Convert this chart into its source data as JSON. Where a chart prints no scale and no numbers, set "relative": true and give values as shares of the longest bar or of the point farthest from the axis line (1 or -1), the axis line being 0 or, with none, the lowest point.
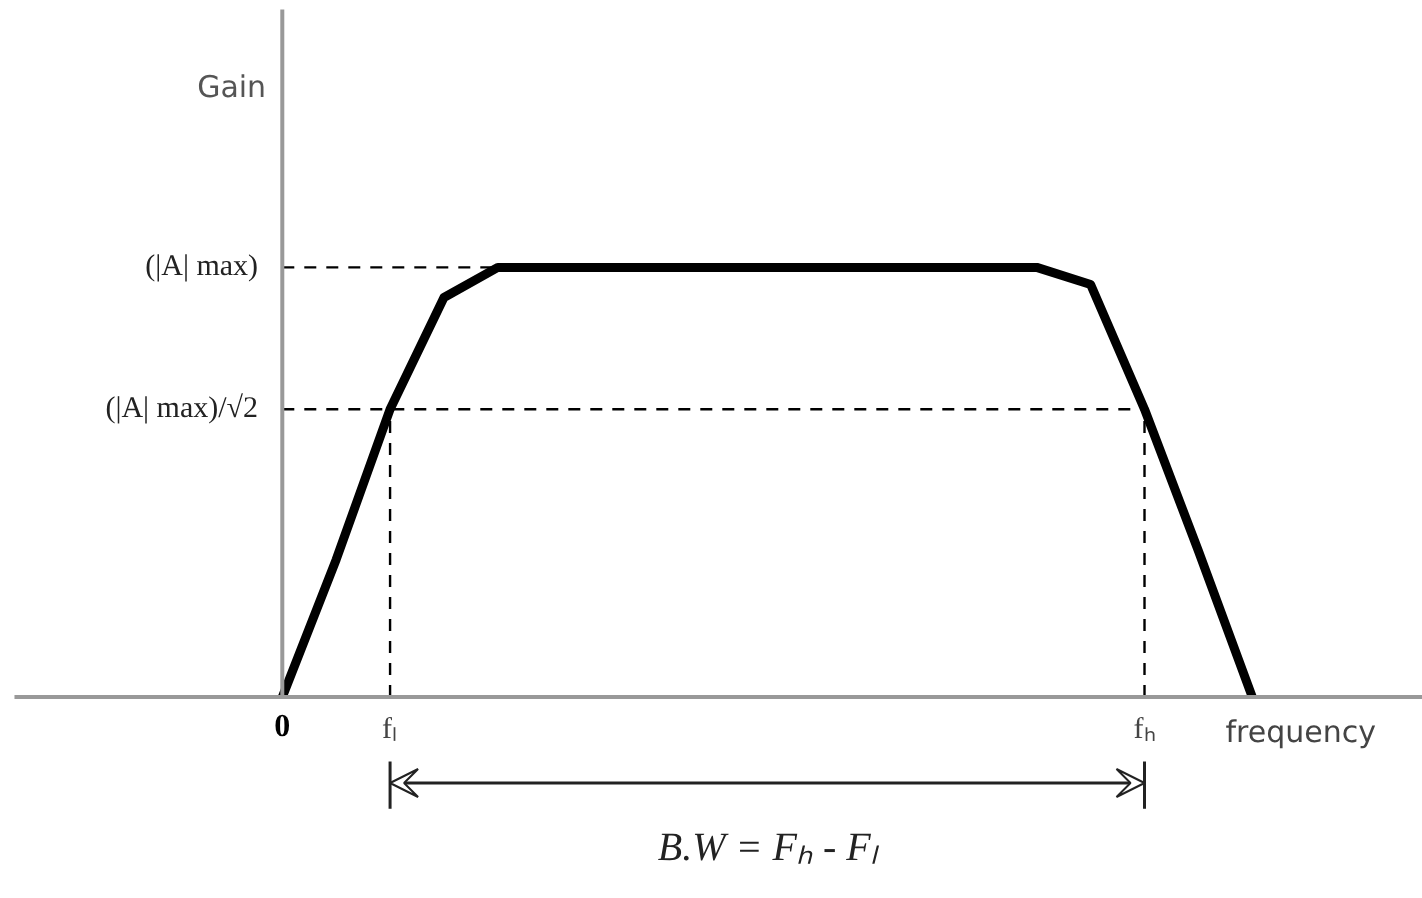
{
  "chart_data": {
    "type": "line",
    "relative": true,
    "xlabel": "frequency",
    "categories": [
      "0",
      null,
      "fₗ",
      null,
      null,
      null,
      null,
      null,
      null,
      null,
      null,
      null,
      null,
      null,
      null,
      null,
      "fₕ",
      null,
      null
    ],
    "series": [
      {
        "color": "#000000",
        "values": [
          0,
          0.32,
          0.67,
          0.93,
          1,
          1,
          1,
          1,
          1,
          1,
          1,
          1,
          1,
          1,
          1,
          0.96,
          0.67,
          0.34,
          0
        ]
      }
    ],
    "ref_lines": [
      {
        "axis": "y",
        "value": 1,
        "label": "(|A| max)",
        "line_style": "dashed"
      },
      {
        "axis": "y",
        "value": 0.67,
        "label": "(|A| max)/√2",
        "line_style": "dashed"
      },
      {
        "axis": "x",
        "value": "fₗ",
        "line_style": "dashed"
      },
      {
        "axis": "x",
        "value": "fₕ",
        "line_style": "dashed"
      }
    ],
    "annotations": [
      "B.W = Fₕ - Fₗ",
      "Gain"
    ],
    "marker": "none",
    "line_style": "solid"
  }
}
